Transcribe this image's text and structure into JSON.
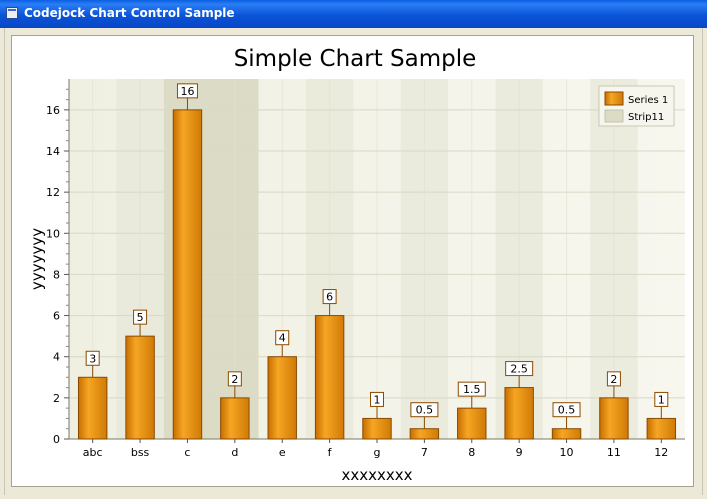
{
  "window": {
    "title": "Codejock Chart Control Sample"
  },
  "chart_data": {
    "type": "bar",
    "title": "Simple Chart Sample",
    "xlabel": "xxxxxxxx",
    "ylabel": "yyyyyyy",
    "categories": [
      "abc",
      "bss",
      "c",
      "d",
      "e",
      "f",
      "g",
      "7",
      "8",
      "9",
      "10",
      "11",
      "12"
    ],
    "series": [
      {
        "name": "Series 1",
        "values": [
          3,
          5,
          16,
          2,
          4,
          6,
          1,
          0.5,
          1.5,
          2.5,
          0.5,
          2,
          1
        ],
        "color": "#e8890a"
      }
    ],
    "data_labels": [
      "3",
      "5",
      "16",
      "2",
      "4",
      "6",
      "1",
      "0.5",
      "1.5",
      "2.5",
      "0.5",
      "2",
      "1"
    ],
    "ylim": [
      0,
      17.5
    ],
    "yticks": [
      0,
      2,
      4,
      6,
      8,
      10,
      12,
      14,
      16
    ],
    "ytick_labels": [
      "0",
      "2",
      "4",
      "6",
      "8",
      "10",
      "12",
      "14",
      "16"
    ],
    "strip": {
      "name": "Strip11",
      "categories": [
        "c",
        "d"
      ],
      "color": "#dcdcc6"
    },
    "legend": {
      "position": "top-right",
      "entries": [
        "Series 1",
        "Strip11"
      ]
    },
    "grid": true
  }
}
